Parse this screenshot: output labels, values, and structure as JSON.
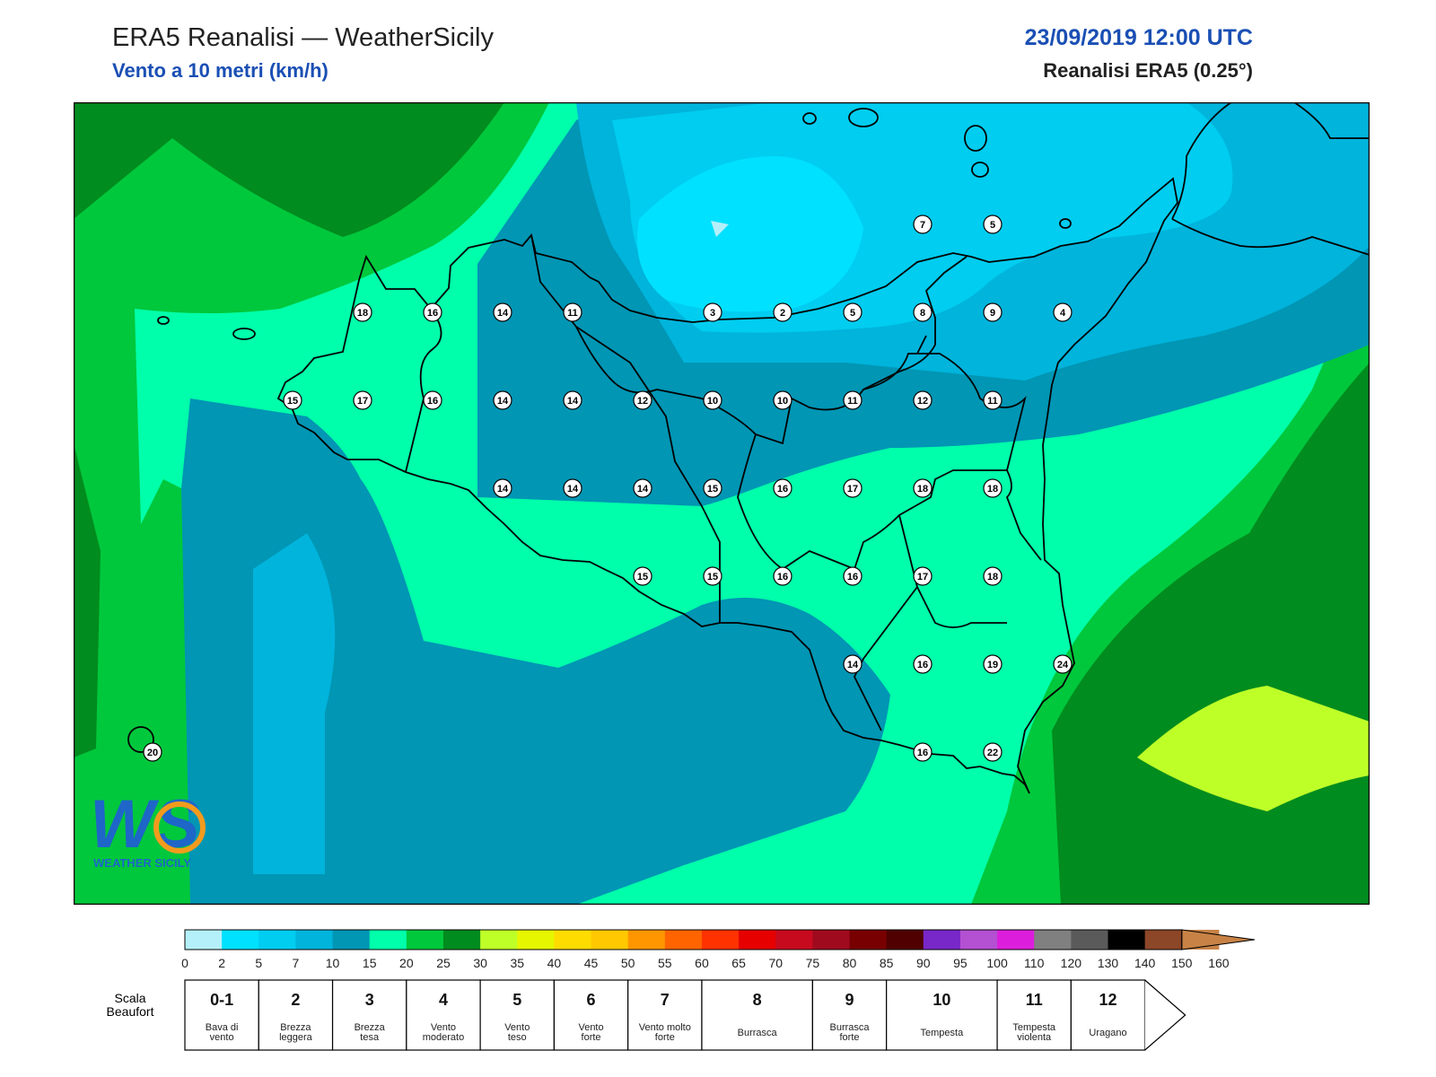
{
  "header": {
    "title": "ERA5 Reanalisi — WeatherSicily",
    "subtitle": "Vento a 10 metri (km/h)",
    "datetime": "23/09/2019 12:00 UTC",
    "reanalysis": "Reanalisi ERA5 (0.25°)"
  },
  "logo": {
    "letters": "WS",
    "text": "WEATHER SICILY"
  },
  "station_values": [
    {
      "row": 0,
      "col": 11,
      "value": "7"
    },
    {
      "row": 0,
      "col": 12,
      "value": "5"
    },
    {
      "row": 1,
      "col": 3,
      "value": "18"
    },
    {
      "row": 1,
      "col": 4,
      "value": "16"
    },
    {
      "row": 1,
      "col": 5,
      "value": "14"
    },
    {
      "row": 1,
      "col": 6,
      "value": "11"
    },
    {
      "row": 1,
      "col": 8,
      "value": "3"
    },
    {
      "row": 1,
      "col": 9,
      "value": "2"
    },
    {
      "row": 1,
      "col": 10,
      "value": "5"
    },
    {
      "row": 1,
      "col": 11,
      "value": "8"
    },
    {
      "row": 1,
      "col": 12,
      "value": "9"
    },
    {
      "row": 1,
      "col": 13,
      "value": "4"
    },
    {
      "row": 2,
      "col": 2,
      "value": "15"
    },
    {
      "row": 2,
      "col": 3,
      "value": "17"
    },
    {
      "row": 2,
      "col": 4,
      "value": "16"
    },
    {
      "row": 2,
      "col": 5,
      "value": "14"
    },
    {
      "row": 2,
      "col": 6,
      "value": "14"
    },
    {
      "row": 2,
      "col": 7,
      "value": "12"
    },
    {
      "row": 2,
      "col": 8,
      "value": "10"
    },
    {
      "row": 2,
      "col": 9,
      "value": "10"
    },
    {
      "row": 2,
      "col": 10,
      "value": "11"
    },
    {
      "row": 2,
      "col": 11,
      "value": "12"
    },
    {
      "row": 2,
      "col": 12,
      "value": "11"
    },
    {
      "row": 3,
      "col": 5,
      "value": "14"
    },
    {
      "row": 3,
      "col": 6,
      "value": "14"
    },
    {
      "row": 3,
      "col": 7,
      "value": "14"
    },
    {
      "row": 3,
      "col": 8,
      "value": "15"
    },
    {
      "row": 3,
      "col": 9,
      "value": "16"
    },
    {
      "row": 3,
      "col": 10,
      "value": "17"
    },
    {
      "row": 3,
      "col": 11,
      "value": "18"
    },
    {
      "row": 3,
      "col": 12,
      "value": "18"
    },
    {
      "row": 4,
      "col": 7,
      "value": "15"
    },
    {
      "row": 4,
      "col": 8,
      "value": "15"
    },
    {
      "row": 4,
      "col": 9,
      "value": "16"
    },
    {
      "row": 4,
      "col": 10,
      "value": "16"
    },
    {
      "row": 4,
      "col": 11,
      "value": "17"
    },
    {
      "row": 4,
      "col": 12,
      "value": "18"
    },
    {
      "row": 5,
      "col": 10,
      "value": "14"
    },
    {
      "row": 5,
      "col": 11,
      "value": "16"
    },
    {
      "row": 5,
      "col": 12,
      "value": "19"
    },
    {
      "row": 5,
      "col": 13,
      "value": "24"
    },
    {
      "row": 6,
      "col": 0,
      "value": "20"
    },
    {
      "row": 6,
      "col": 11,
      "value": "16"
    },
    {
      "row": 6,
      "col": 12,
      "value": "22"
    }
  ],
  "colorbar": {
    "labels": [
      "0",
      "2",
      "5",
      "7",
      "10",
      "15",
      "20",
      "25",
      "30",
      "35",
      "40",
      "45",
      "50",
      "55",
      "60",
      "65",
      "70",
      "75",
      "80",
      "85",
      "90",
      "95",
      "100",
      "110",
      "120",
      "130",
      "140",
      "150",
      "160"
    ],
    "colors": [
      "#b4f0fa",
      "#00e1ff",
      "#00cdf0",
      "#00b4dc",
      "#0096b4",
      "#00ffaa",
      "#00c83c",
      "#008c1e",
      "#beff28",
      "#e6f500",
      "#ffdc00",
      "#ffc800",
      "#ff9600",
      "#ff6400",
      "#ff3200",
      "#e60000",
      "#c80a1e",
      "#a00a1e",
      "#780000",
      "#500000",
      "#7828c8",
      "#b450d2",
      "#dc1edc",
      "#808080",
      "#5a5a5a",
      "#000000",
      "#8c4628",
      "#c88246"
    ]
  },
  "beaufort": {
    "title": "Scala Beaufort",
    "classes": [
      {
        "num": "0-1",
        "label": "Bava di vento"
      },
      {
        "num": "2",
        "label": "Brezza leggera"
      },
      {
        "num": "3",
        "label": "Brezza tesa"
      },
      {
        "num": "4",
        "label": "Vento moderato"
      },
      {
        "num": "5",
        "label": "Vento teso"
      },
      {
        "num": "6",
        "label": "Vento forte"
      },
      {
        "num": "7",
        "label": "Vento molto forte"
      },
      {
        "num": "8",
        "label": "Burrasca"
      },
      {
        "num": "9",
        "label": "Burrasca forte"
      },
      {
        "num": "10",
        "label": "Tempesta"
      },
      {
        "num": "11",
        "label": "Tempesta violenta"
      },
      {
        "num": "12",
        "label": "Uragano"
      }
    ]
  }
}
